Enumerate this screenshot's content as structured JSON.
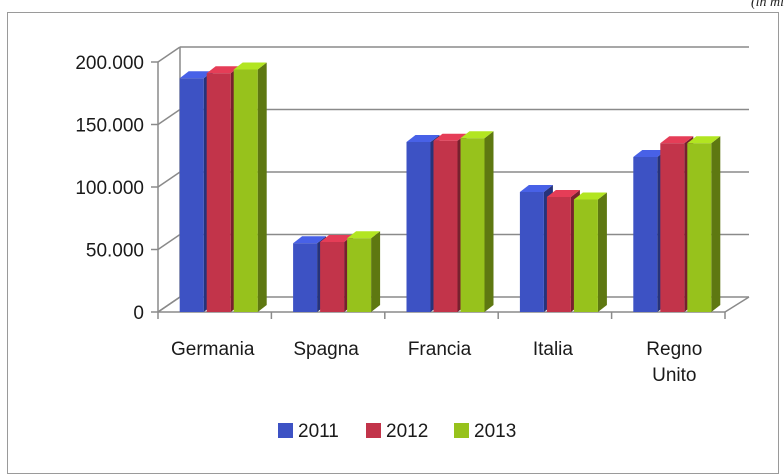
{
  "note": "(in mi",
  "chart_data": {
    "type": "bar",
    "title": "",
    "xlabel": "",
    "ylabel": "",
    "categories": [
      "Germania",
      "Spagna",
      "Francia",
      "Italia",
      "Regno Unito"
    ],
    "series": [
      {
        "name": "2011",
        "color": "#3d52c4",
        "values": [
          187000,
          55000,
          136000,
          96000,
          124000
        ]
      },
      {
        "name": "2012",
        "color": "#c2344a",
        "values": [
          191000,
          56000,
          137000,
          92000,
          135000
        ]
      },
      {
        "name": "2013",
        "color": "#97c21c",
        "values": [
          194000,
          59000,
          139000,
          90000,
          135000
        ]
      }
    ],
    "ylim": [
      0,
      200000
    ],
    "yticks": [
      0,
      50000,
      100000,
      150000,
      200000
    ],
    "ytick_labels": [
      "0",
      "50.000",
      "100.000",
      "150.000",
      "200.000"
    ],
    "grid": true,
    "legend_position": "bottom"
  }
}
